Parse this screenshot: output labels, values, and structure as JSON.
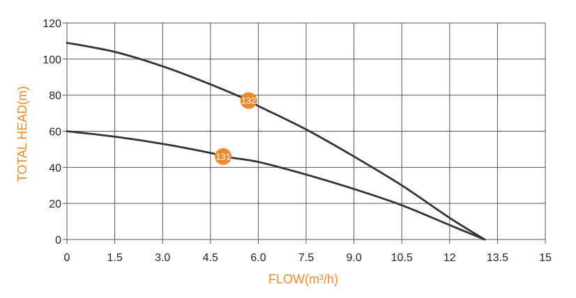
{
  "chart_data": {
    "type": "line",
    "xlabel": "FLOW(m³/h)",
    "ylabel": "TOTAL HEAD(m)",
    "xlim": [
      0,
      15
    ],
    "ylim": [
      0,
      120
    ],
    "x_ticks": [
      "0",
      "1.5",
      "3.0",
      "4.5",
      "6.0",
      "7.5",
      "9.0",
      "10.5",
      "12",
      "13.5",
      "15"
    ],
    "y_ticks": [
      "0",
      "20",
      "40",
      "60",
      "80",
      "100",
      "120"
    ],
    "grid": true,
    "series": [
      {
        "name": "132",
        "x": [
          0,
          1.5,
          3.0,
          4.5,
          5.7,
          6.0,
          7.5,
          9.0,
          10.5,
          12.0,
          13.1
        ],
        "y": [
          109,
          104,
          96,
          86,
          77,
          74,
          61,
          46,
          30,
          12,
          0
        ]
      },
      {
        "name": "131",
        "x": [
          0,
          1.5,
          3.0,
          4.5,
          4.9,
          6.0,
          7.5,
          9.0,
          10.5,
          12.0,
          13.1
        ],
        "y": [
          60,
          57,
          53,
          48,
          46,
          43,
          36,
          28,
          19,
          8,
          0
        ]
      }
    ],
    "badges": [
      {
        "label": "132",
        "x": 5.7,
        "y": 77
      },
      {
        "label": "131",
        "x": 4.9,
        "y": 46
      }
    ],
    "colors": {
      "accent": "#f08a2c",
      "line": "#333333",
      "grid": "#555555"
    }
  }
}
